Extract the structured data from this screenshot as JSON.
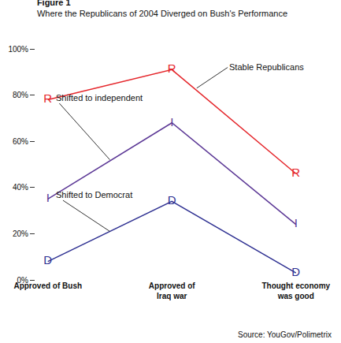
{
  "chart_data": {
    "type": "line",
    "title": "Figure 1",
    "subtitle": "Where the Republicans of 2004 Diverged on Bush's Performance",
    "source": "Source: YouGov/Polimetrix",
    "categories": [
      "Approved of Bush",
      "Approved of Iraq war",
      "Thought economy was good"
    ],
    "series": [
      {
        "name": "Stable Republicans",
        "color": "#e5262b",
        "marker": "R",
        "values": [
          78,
          91,
          46
        ]
      },
      {
        "name": "Shifted to independent",
        "color": "#5c3896",
        "marker": "I",
        "values": [
          35,
          68,
          24
        ]
      },
      {
        "name": "Shifted to Democrat",
        "color": "#2f3192",
        "marker": "D",
        "values": [
          8,
          34,
          3
        ]
      }
    ],
    "ylim": [
      0,
      100
    ],
    "yticks": [
      {
        "value": 0,
        "label": "0%"
      },
      {
        "value": 20,
        "label": "20%"
      },
      {
        "value": 40,
        "label": "40%"
      },
      {
        "value": 60,
        "label": "60%"
      },
      {
        "value": 80,
        "label": "80%"
      },
      {
        "value": 100,
        "label": "100%"
      }
    ],
    "grid": false
  }
}
